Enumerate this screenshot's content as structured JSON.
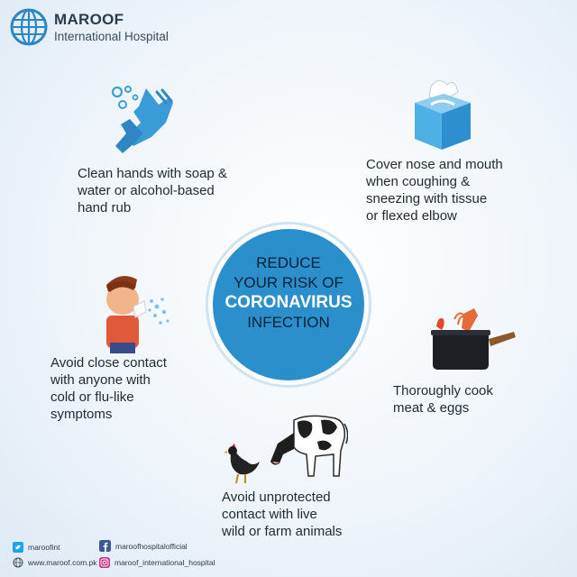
{
  "header": {
    "brand_name": "MAROOF",
    "brand_sub": "International Hospital"
  },
  "center": {
    "line1": "REDUCE",
    "line2": "YOUR RISK OF",
    "line3": "CORONAVIRUS",
    "line4": "INFECTION"
  },
  "tips": {
    "hands": [
      "Clean hands with soap &",
      "water or alcohol-based",
      "hand rub"
    ],
    "cover": [
      "Cover nose and mouth",
      "when coughing &",
      "sneezing with tissue",
      "or flexed elbow"
    ],
    "contact": [
      "Avoid close contact",
      "with anyone with",
      "cold or flu-like",
      "symptoms"
    ],
    "cook": [
      "Thoroughly cook",
      "meat & eggs"
    ],
    "animals": [
      "Avoid unprotected",
      "contact with live",
      "wild or farm animals"
    ]
  },
  "footer": {
    "twitter": "maroofint",
    "facebook": "maroofhospitalofficial",
    "website": "www.maroof.com.pk",
    "instagram": "maroof_international_hospital"
  },
  "colors": {
    "circle": "#2b8fcb",
    "accent": "#3aa0d8",
    "brand_text": "#2a3b4c"
  },
  "icons": [
    "globe-logo-icon",
    "hand-wash-icon",
    "tissue-box-icon",
    "sneezing-boy-icon",
    "cooking-pot-icon",
    "hen-icon",
    "cow-icon",
    "twitter-icon",
    "facebook-icon",
    "web-icon",
    "instagram-icon"
  ]
}
